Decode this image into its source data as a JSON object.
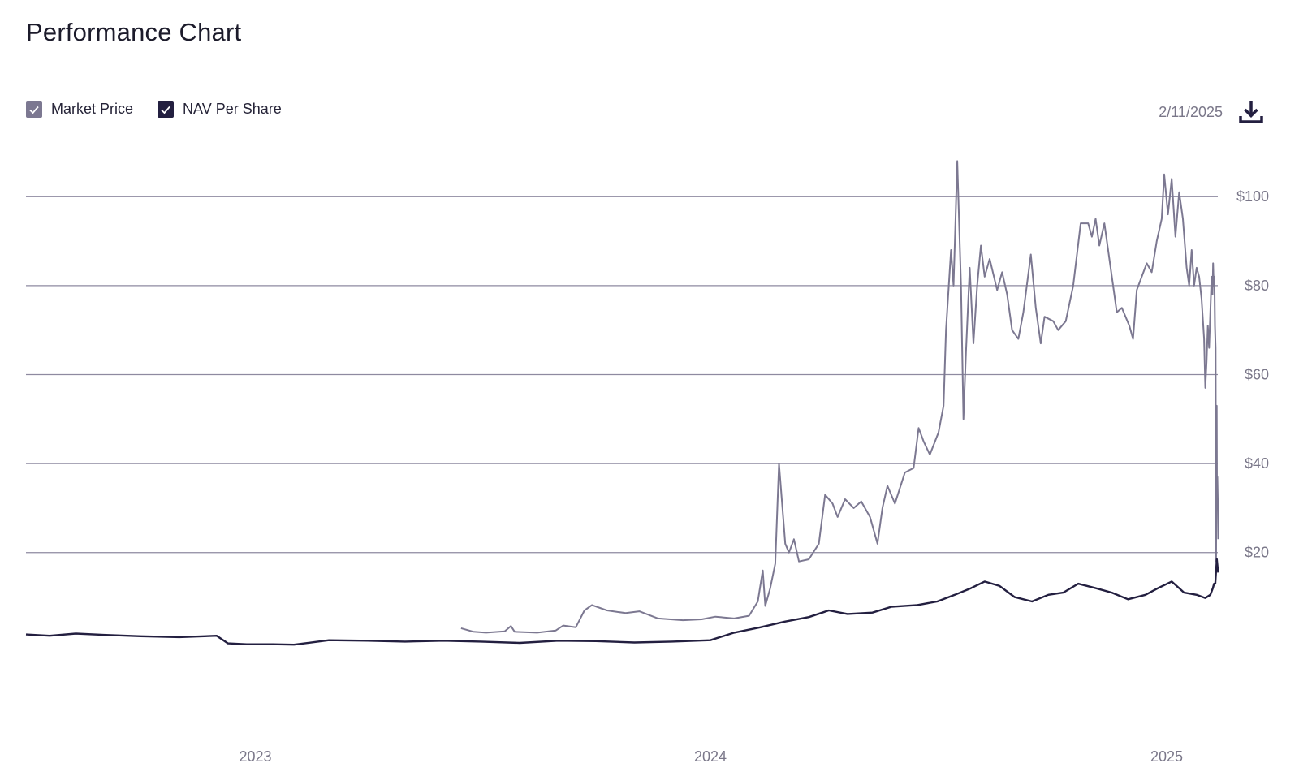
{
  "title": "Performance Chart",
  "legend": {
    "market_price": {
      "label": "Market Price",
      "color": "#7c7891",
      "checked": true
    },
    "nav_per_share": {
      "label": "NAV Per Share",
      "color": "#231f40",
      "checked": true
    }
  },
  "as_of_date": "2/11/2025",
  "icons": {
    "download": "download-icon",
    "check": "check-icon"
  },
  "chart_data": {
    "type": "line",
    "title": "",
    "xlabel": "",
    "ylabel": "",
    "x_range": [
      "2022-07-01",
      "2025-02-11"
    ],
    "ylim": [
      -20,
      115
    ],
    "y_ticks": [
      {
        "value": 20,
        "label": "$20"
      },
      {
        "value": 40,
        "label": "$40"
      },
      {
        "value": 60,
        "label": "$60"
      },
      {
        "value": 80,
        "label": "$80"
      },
      {
        "value": 100,
        "label": "$100"
      }
    ],
    "x_ticks": [
      {
        "value": "2023-01-01",
        "label": "2023"
      },
      {
        "value": "2024-01-01",
        "label": "2024"
      },
      {
        "value": "2025-01-01",
        "label": "2025"
      }
    ],
    "grid": "horizontal",
    "legend_position": "top-left",
    "series": [
      {
        "name": "Market Price",
        "color": "#7c7891",
        "points": [
          [
            "2023-06-15",
            3.0
          ],
          [
            "2023-06-25",
            2.2
          ],
          [
            "2023-07-05",
            2.0
          ],
          [
            "2023-07-20",
            2.3
          ],
          [
            "2023-07-25",
            3.5
          ],
          [
            "2023-07-28",
            2.2
          ],
          [
            "2023-08-15",
            2.0
          ],
          [
            "2023-08-30",
            2.5
          ],
          [
            "2023-09-05",
            3.6
          ],
          [
            "2023-09-15",
            3.2
          ],
          [
            "2023-09-22",
            7.0
          ],
          [
            "2023-09-28",
            8.2
          ],
          [
            "2023-10-10",
            7.0
          ],
          [
            "2023-10-25",
            6.4
          ],
          [
            "2023-11-05",
            6.8
          ],
          [
            "2023-11-20",
            5.2
          ],
          [
            "2023-12-10",
            4.8
          ],
          [
            "2023-12-25",
            5.0
          ],
          [
            "2024-01-05",
            5.6
          ],
          [
            "2024-01-20",
            5.2
          ],
          [
            "2024-02-01",
            5.8
          ],
          [
            "2024-02-08",
            9.0
          ],
          [
            "2024-02-12",
            16.0
          ],
          [
            "2024-02-14",
            8.0
          ],
          [
            "2024-02-18",
            12.0
          ],
          [
            "2024-02-22",
            17.5
          ],
          [
            "2024-02-25",
            40.0
          ],
          [
            "2024-03-01",
            22.0
          ],
          [
            "2024-03-04",
            20.0
          ],
          [
            "2024-03-08",
            23.0
          ],
          [
            "2024-03-12",
            18.0
          ],
          [
            "2024-03-20",
            18.5
          ],
          [
            "2024-03-28",
            22.0
          ],
          [
            "2024-04-02",
            33.0
          ],
          [
            "2024-04-08",
            31.0
          ],
          [
            "2024-04-12",
            28.0
          ],
          [
            "2024-04-18",
            32.0
          ],
          [
            "2024-04-25",
            30.0
          ],
          [
            "2024-05-01",
            31.5
          ],
          [
            "2024-05-08",
            28.0
          ],
          [
            "2024-05-14",
            22.0
          ],
          [
            "2024-05-18",
            30.0
          ],
          [
            "2024-05-22",
            35.0
          ],
          [
            "2024-05-28",
            31.0
          ],
          [
            "2024-06-05",
            38.0
          ],
          [
            "2024-06-12",
            39.0
          ],
          [
            "2024-06-16",
            48.0
          ],
          [
            "2024-06-20",
            45.0
          ],
          [
            "2024-06-25",
            42.0
          ],
          [
            "2024-07-02",
            47.0
          ],
          [
            "2024-07-06",
            53.0
          ],
          [
            "2024-07-08",
            70.0
          ],
          [
            "2024-07-12",
            88.0
          ],
          [
            "2024-07-14",
            80.0
          ],
          [
            "2024-07-17",
            108.0
          ],
          [
            "2024-07-20",
            80.0
          ],
          [
            "2024-07-22",
            50.0
          ],
          [
            "2024-07-24",
            65.0
          ],
          [
            "2024-07-27",
            84.0
          ],
          [
            "2024-07-30",
            67.0
          ],
          [
            "2024-08-02",
            80.0
          ],
          [
            "2024-08-05",
            89.0
          ],
          [
            "2024-08-08",
            82.0
          ],
          [
            "2024-08-12",
            86.0
          ],
          [
            "2024-08-18",
            79.0
          ],
          [
            "2024-08-22",
            83.0
          ],
          [
            "2024-08-26",
            78.0
          ],
          [
            "2024-08-30",
            70.0
          ],
          [
            "2024-09-04",
            68.0
          ],
          [
            "2024-09-08",
            74.0
          ],
          [
            "2024-09-14",
            87.0
          ],
          [
            "2024-09-18",
            75.0
          ],
          [
            "2024-09-22",
            67.0
          ],
          [
            "2024-09-25",
            73.0
          ],
          [
            "2024-10-02",
            72.0
          ],
          [
            "2024-10-06",
            70.0
          ],
          [
            "2024-10-12",
            72.0
          ],
          [
            "2024-10-18",
            80.0
          ],
          [
            "2024-10-24",
            94.0
          ],
          [
            "2024-10-30",
            94.0
          ],
          [
            "2024-11-02",
            91.0
          ],
          [
            "2024-11-05",
            95.0
          ],
          [
            "2024-11-08",
            89.0
          ],
          [
            "2024-11-12",
            94.0
          ],
          [
            "2024-11-18",
            82.0
          ],
          [
            "2024-11-22",
            74.0
          ],
          [
            "2024-11-26",
            75.0
          ],
          [
            "2024-12-02",
            71.0
          ],
          [
            "2024-12-05",
            68.0
          ],
          [
            "2024-12-08",
            79.0
          ],
          [
            "2024-12-12",
            82.0
          ],
          [
            "2024-12-16",
            85.0
          ],
          [
            "2024-12-20",
            83.0
          ],
          [
            "2024-12-24",
            90.0
          ],
          [
            "2024-12-28",
            95.0
          ],
          [
            "2024-12-30",
            105.0
          ],
          [
            "2025-01-02",
            96.0
          ],
          [
            "2025-01-05",
            104.0
          ],
          [
            "2025-01-08",
            91.0
          ],
          [
            "2025-01-11",
            101.0
          ],
          [
            "2025-01-14",
            95.0
          ],
          [
            "2025-01-17",
            84.0
          ],
          [
            "2025-01-19",
            80.0
          ],
          [
            "2025-01-21",
            88.0
          ],
          [
            "2025-01-23",
            80.0
          ],
          [
            "2025-01-25",
            84.0
          ],
          [
            "2025-01-27",
            82.0
          ],
          [
            "2025-01-29",
            77.0
          ],
          [
            "2025-01-31",
            68.0
          ],
          [
            "2025-02-01",
            57.0
          ],
          [
            "2025-02-02",
            63.0
          ],
          [
            "2025-02-03",
            71.0
          ],
          [
            "2025-02-04",
            66.0
          ],
          [
            "2025-02-05",
            74.0
          ],
          [
            "2025-02-06",
            82.0
          ],
          [
            "2025-02-07",
            78.0
          ],
          [
            "2025-02-07",
            85.0
          ],
          [
            "2025-02-08",
            80.0
          ],
          [
            "2025-02-08",
            82.0
          ],
          [
            "2025-02-09",
            71.0
          ],
          [
            "2025-02-09",
            66.0
          ],
          [
            "2025-02-10",
            18.0
          ],
          [
            "2025-02-10",
            40.0
          ],
          [
            "2025-02-10",
            53.0
          ],
          [
            "2025-02-10",
            34.0
          ],
          [
            "2025-02-11",
            37.0
          ],
          [
            "2025-02-11",
            32.0
          ],
          [
            "2025-02-11",
            23.0
          ]
        ]
      },
      {
        "name": "NAV Per Share",
        "color": "#231f40",
        "points": [
          [
            "2022-07-01",
            1.6
          ],
          [
            "2022-07-20",
            1.3
          ],
          [
            "2022-08-10",
            1.8
          ],
          [
            "2022-09-01",
            1.5
          ],
          [
            "2022-10-01",
            1.2
          ],
          [
            "2022-11-01",
            1.0
          ],
          [
            "2022-12-01",
            1.3
          ],
          [
            "2022-12-10",
            -0.4
          ],
          [
            "2022-12-25",
            -0.6
          ],
          [
            "2023-01-15",
            -0.6
          ],
          [
            "2023-02-01",
            -0.7
          ],
          [
            "2023-03-01",
            0.3
          ],
          [
            "2023-04-01",
            0.2
          ],
          [
            "2023-05-01",
            0.0
          ],
          [
            "2023-06-01",
            0.2
          ],
          [
            "2023-07-01",
            0.0
          ],
          [
            "2023-08-01",
            -0.3
          ],
          [
            "2023-09-01",
            0.2
          ],
          [
            "2023-10-01",
            0.1
          ],
          [
            "2023-11-01",
            -0.2
          ],
          [
            "2023-12-01",
            0.0
          ],
          [
            "2024-01-01",
            0.3
          ],
          [
            "2024-01-20",
            2.0
          ],
          [
            "2024-02-10",
            3.2
          ],
          [
            "2024-03-01",
            4.5
          ],
          [
            "2024-03-20",
            5.5
          ],
          [
            "2024-04-05",
            7.0
          ],
          [
            "2024-04-20",
            6.2
          ],
          [
            "2024-05-10",
            6.5
          ],
          [
            "2024-05-25",
            7.8
          ],
          [
            "2024-06-15",
            8.2
          ],
          [
            "2024-07-01",
            9.0
          ],
          [
            "2024-07-15",
            10.5
          ],
          [
            "2024-07-28",
            12.0
          ],
          [
            "2024-08-08",
            13.5
          ],
          [
            "2024-08-20",
            12.5
          ],
          [
            "2024-09-01",
            10.0
          ],
          [
            "2024-09-15",
            9.0
          ],
          [
            "2024-09-28",
            10.5
          ],
          [
            "2024-10-10",
            11.0
          ],
          [
            "2024-10-22",
            13.0
          ],
          [
            "2024-11-05",
            12.0
          ],
          [
            "2024-11-18",
            11.0
          ],
          [
            "2024-12-01",
            9.5
          ],
          [
            "2024-12-15",
            10.5
          ],
          [
            "2024-12-25",
            12.0
          ],
          [
            "2025-01-05",
            13.5
          ],
          [
            "2025-01-15",
            11.0
          ],
          [
            "2025-01-25",
            10.5
          ],
          [
            "2025-02-01",
            9.8
          ],
          [
            "2025-02-05",
            10.5
          ],
          [
            "2025-02-07",
            12.0
          ],
          [
            "2025-02-08",
            13.0
          ],
          [
            "2025-02-09",
            13.0
          ],
          [
            "2025-02-10",
            16.5
          ],
          [
            "2025-02-10",
            18.5
          ],
          [
            "2025-02-11",
            17.0
          ],
          [
            "2025-02-11",
            15.5
          ]
        ]
      }
    ]
  }
}
